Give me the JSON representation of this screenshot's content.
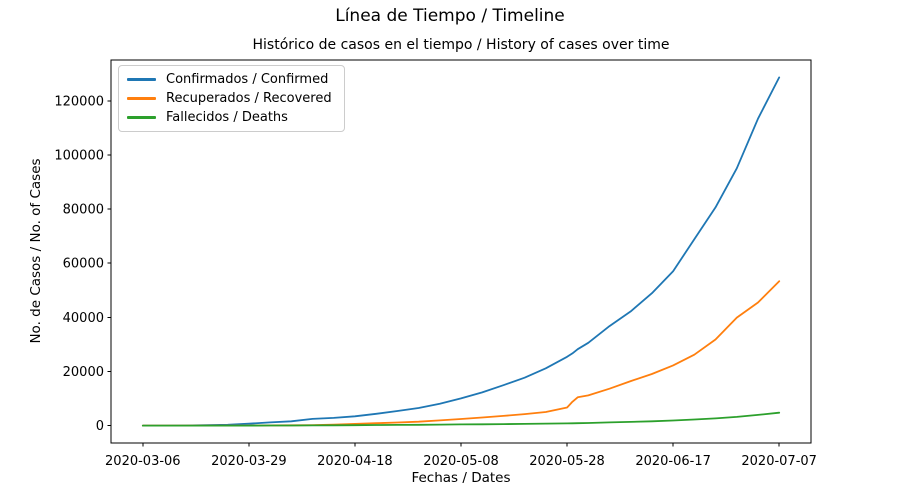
{
  "figure": {
    "suptitle": "Línea de Tiempo / Timeline"
  },
  "chart_data": {
    "type": "line",
    "title": "Línea de Tiempo / Timeline",
    "subtitle": "Histórico de casos en el tiempo / History of cases over time",
    "xlabel": "Fechas / Dates",
    "ylabel": "No. de Casos / No. of Cases",
    "grid": false,
    "legend_position": "upper left",
    "x_tick_labels": [
      "2020-03-06",
      "2020-03-29",
      "2020-04-18",
      "2020-05-08",
      "2020-05-28",
      "2020-06-17",
      "2020-07-07"
    ],
    "x_tick_index": [
      0,
      20,
      40,
      60,
      80,
      100,
      120
    ],
    "y_ticks": [
      0,
      20000,
      40000,
      60000,
      80000,
      100000,
      120000
    ],
    "xlim": [
      -6,
      126
    ],
    "ylim": [
      -6432,
      135070
    ],
    "x_index": [
      0,
      4,
      8,
      12,
      16,
      20,
      24,
      28,
      32,
      36,
      40,
      44,
      48,
      52,
      56,
      60,
      64,
      68,
      72,
      76,
      80,
      81,
      82,
      84,
      88,
      92,
      96,
      100,
      104,
      108,
      112,
      116,
      120
    ],
    "dates": [
      "2020-03-06",
      "2020-03-11",
      "2020-03-15",
      "2020-03-20",
      "2020-03-24",
      "2020-03-29",
      "2020-04-02",
      "2020-04-06",
      "2020-04-10",
      "2020-04-14",
      "2020-04-18",
      "2020-04-22",
      "2020-04-26",
      "2020-04-30",
      "2020-05-04",
      "2020-05-08",
      "2020-05-12",
      "2020-05-16",
      "2020-05-20",
      "2020-05-24",
      "2020-05-28",
      "2020-05-29",
      "2020-05-30",
      "2020-06-01",
      "2020-06-05",
      "2020-06-09",
      "2020-06-13",
      "2020-06-17",
      "2020-06-21",
      "2020-06-25",
      "2020-06-29",
      "2020-07-03",
      "2020-07-07"
    ],
    "series": [
      {
        "name": "Confirmados / Confirmed",
        "color": "#1f77b4",
        "values": [
          1,
          9,
          34,
          128,
          306,
          702,
          1161,
          1579,
          2473,
          2852,
          3439,
          4356,
          5379,
          6507,
          8098,
          10051,
          12272,
          14939,
          17687,
          21175,
          25406,
          26688,
          28236,
          30593,
          36759,
          42206,
          48896,
          57046,
          68836,
          80599,
          95043,
          113389,
          128638
        ]
      },
      {
        "name": "Recuperados / Recovered",
        "color": "#ff7f0e",
        "values": [
          0,
          0,
          1,
          3,
          10,
          15,
          55,
          100,
          197,
          319,
          634,
          870,
          1133,
          1439,
          1902,
          2424,
          2971,
          3587,
          4256,
          5016,
          6687,
          8805,
          10451,
          11142,
          13638,
          16427,
          19049,
          22245,
          26187,
          31800,
          39900,
          45489,
          53338
        ]
      },
      {
        "name": "Fallecidos / Deaths",
        "color": "#2ca02c",
        "values": [
          0,
          0,
          0,
          0,
          3,
          10,
          19,
          46,
          80,
          112,
          153,
          206,
          244,
          293,
          357,
          428,
          493,
          562,
          630,
          727,
          822,
          853,
          890,
          969,
          1192,
          1372,
          1592,
          1864,
          2262,
          2654,
          3223,
          3942,
          4764
        ]
      }
    ]
  }
}
